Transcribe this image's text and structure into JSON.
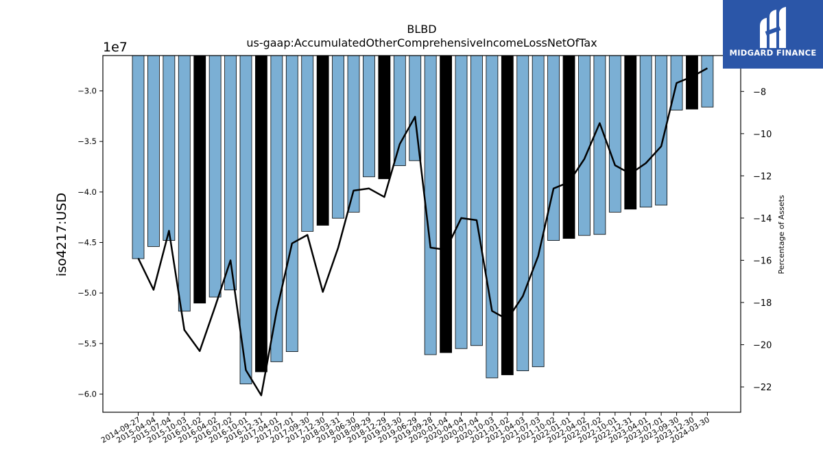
{
  "brand": {
    "name": "MIDGARD FINANCE",
    "bg_color": "#2b56a8"
  },
  "chart_data": {
    "type": "bar",
    "title": "BLBD",
    "subtitle": "us-gaap:AccumulatedOtherComprehensiveIncomeLossNetOfTax",
    "ylabel": "iso4217:USD",
    "y_scale_label": "1e7",
    "y2label": "Percentage of Assets",
    "ylim": [
      -61800000,
      -26500000
    ],
    "y2lim": [
      -23.2,
      -6.3
    ],
    "yticks": [
      -30000000,
      -35000000,
      -40000000,
      -45000000,
      -50000000,
      -55000000,
      -60000000
    ],
    "yticklabels": [
      "−3.0",
      "−3.5",
      "−4.0",
      "−4.5",
      "−5.0",
      "−5.5",
      "−6.0"
    ],
    "y2ticks": [
      -8,
      -10,
      -12,
      -14,
      -16,
      -18,
      -20,
      -22
    ],
    "y2ticklabels": [
      "−8",
      "−10",
      "−12",
      "−14",
      "−16",
      "−18",
      "−20",
      "−22"
    ],
    "categories": [
      "2014-09-27",
      "2015-04-04",
      "2015-07-04",
      "2015-10-03",
      "2016-01-02",
      "2016-04-02",
      "2016-07-02",
      "2016-10-01",
      "2016-12-31",
      "2017-04-01",
      "2017-07-01",
      "2017-09-30",
      "2017-12-30",
      "2018-03-31",
      "2018-06-30",
      "2018-09-29",
      "2018-12-29",
      "2019-03-30",
      "2019-06-29",
      "2019-09-28",
      "2020-01-04",
      "2020-04-04",
      "2020-07-04",
      "2020-10-03",
      "2021-01-02",
      "2021-04-03",
      "2021-07-03",
      "2021-10-02",
      "2022-01-01",
      "2022-04-02",
      "2022-07-02",
      "2022-10-01",
      "2022-12-31",
      "2023-04-01",
      "2023-07-01",
      "2023-09-30",
      "2023-12-30",
      "2024-03-30"
    ],
    "series": [
      {
        "kind": "bar",
        "values": [
          -46600000,
          -45400000,
          -44800000,
          -51800000,
          -51000000,
          -50400000,
          -49700000,
          -59000000,
          -57800000,
          -56800000,
          -55800000,
          -43900000,
          -43300000,
          -42600000,
          -42000000,
          -38500000,
          -38700000,
          -37400000,
          -36900000,
          -56100000,
          -55900000,
          -55500000,
          -55200000,
          -58400000,
          -58100000,
          -57700000,
          -57300000,
          -44800000,
          -44600000,
          -44300000,
          -44200000,
          -42000000,
          -41700000,
          -41500000,
          -41300000,
          -31900000,
          -31800000,
          -31600000
        ],
        "highlight_indices": [
          4,
          8,
          12,
          16,
          20,
          24,
          28,
          32,
          36
        ],
        "color": "#7bafd4",
        "highlight_color": "#000000"
      },
      {
        "kind": "line",
        "axis": "right",
        "values": [
          -15.9,
          -17.4,
          -14.6,
          -19.3,
          -20.3,
          -18.2,
          -16.0,
          -21.2,
          -22.4,
          -18.4,
          -15.2,
          -14.8,
          -17.5,
          -15.4,
          -12.7,
          -12.6,
          -13.0,
          -10.5,
          -9.2,
          -15.4,
          -15.5,
          -14.0,
          -14.1,
          -18.4,
          -18.8,
          -17.7,
          -15.8,
          -12.6,
          -12.3,
          -11.2,
          -9.5,
          -11.5,
          -11.9,
          -11.4,
          -10.6,
          -7.6,
          -7.3,
          -6.9
        ],
        "color": "#000000"
      }
    ]
  }
}
